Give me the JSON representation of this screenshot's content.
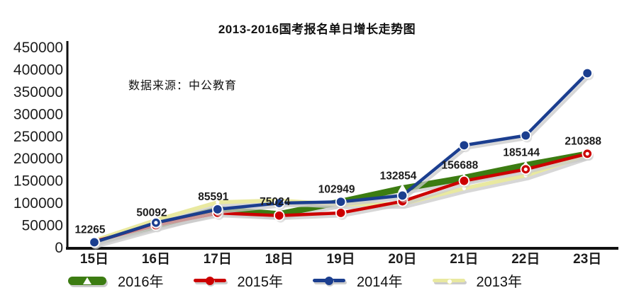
{
  "title": "2013-2016国考报名单日增长走势图",
  "source_note": "数据来源：中公教育",
  "chart_data": {
    "type": "line",
    "title": "2013-2016国考报名单日增长走势图",
    "annotation": "数据来源：中公教育",
    "x_categories": [
      "15日",
      "16日",
      "17日",
      "18日",
      "19日",
      "20日",
      "21日",
      "22日",
      "23日"
    ],
    "y_ticks": [
      0,
      50000,
      100000,
      150000,
      200000,
      250000,
      300000,
      350000,
      400000,
      450000
    ],
    "ylim": [
      0,
      450000
    ],
    "grid": "off",
    "legend_position": "bottom",
    "point_labels": [
      "12265",
      "50092",
      "85591",
      "75024",
      "102949",
      "132854",
      "156688",
      "185144",
      "210388"
    ],
    "series": [
      {
        "name": "2016年",
        "color": "#3c7c12",
        "marker": "triangle",
        "line_width": 9,
        "labeled": true,
        "values": [
          12265,
          50092,
          85591,
          75024,
          102949,
          132854,
          156688,
          185144,
          210388
        ],
        "hollow_points": []
      },
      {
        "name": "2015年",
        "color": "#cc0000",
        "marker": "circle",
        "line_width": 4.5,
        "labeled": false,
        "values": [
          14000,
          50000,
          78000,
          72000,
          78000,
          104000,
          150000,
          176000,
          211000
        ],
        "hollow_points": [
          7,
          8
        ]
      },
      {
        "name": "2014年",
        "color": "#1b3e8f",
        "marker": "circle",
        "line_width": 4.5,
        "labeled": false,
        "values": [
          12000,
          56000,
          86000,
          100000,
          103000,
          117000,
          230000,
          252000,
          392000
        ],
        "hollow_points": [
          1
        ]
      },
      {
        "name": "2013年",
        "color": "#e9e9a0",
        "marker": "dot",
        "line_width": 5.5,
        "labeled": false,
        "values": [
          16000,
          62000,
          102000,
          106000,
          97000,
          98000,
          133000,
          162000,
          208000
        ],
        "hollow_points": []
      }
    ]
  }
}
